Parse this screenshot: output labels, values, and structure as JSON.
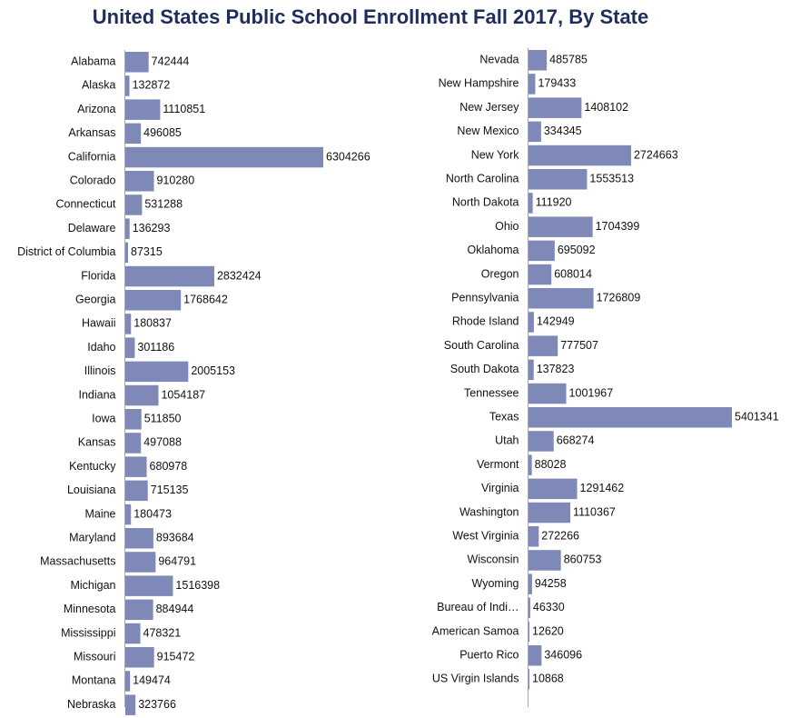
{
  "chart_data": {
    "type": "bar",
    "title": "United States Public School Enrollment Fall 2017, By State",
    "orientation": "horizontal",
    "colors": {
      "bar": "#7f89b8",
      "title": "#1f2d5c",
      "axis": "#aaaaaa"
    },
    "panels": [
      {
        "categories": [
          "Alabama",
          "Alaska",
          "Arizona",
          "Arkansas",
          "California",
          "Colorado",
          "Connecticut",
          "Delaware",
          "District of Columbia",
          "Florida",
          "Georgia",
          "Hawaii",
          "Idaho",
          "Illinois",
          "Indiana",
          "Iowa",
          "Kansas",
          "Kentucky",
          "Louisiana",
          "Maine",
          "Maryland",
          "Massachusetts",
          "Michigan",
          "Minnesota",
          "Mississippi",
          "Missouri",
          "Montana",
          "Nebraska"
        ],
        "values": [
          742444,
          132872,
          1110851,
          496085,
          6304266,
          910280,
          531288,
          136293,
          87315,
          2832424,
          1768642,
          180837,
          301186,
          2005153,
          1054187,
          511850,
          497088,
          680978,
          715135,
          180473,
          893684,
          964791,
          1516398,
          884944,
          478321,
          915472,
          149474,
          323766
        ]
      },
      {
        "categories": [
          "Nevada",
          "New Hampshire",
          "New Jersey",
          "New Mexico",
          "New York",
          "North Carolina",
          "North Dakota",
          "Ohio",
          "Oklahoma",
          "Oregon",
          "Pennsylvania",
          "Rhode Island",
          "South Carolina",
          "South Dakota",
          "Tennessee",
          "Texas",
          "Utah",
          "Vermont",
          "Virginia",
          "Washington",
          "West Virginia",
          "Wisconsin",
          "Wyoming",
          "Bureau of Indi…",
          "American Samoa",
          "Puerto Rico",
          "US Virgin Islands"
        ],
        "values": [
          485785,
          179433,
          1408102,
          334345,
          2724663,
          1553513,
          111920,
          1704399,
          695092,
          608014,
          1726809,
          142949,
          777507,
          137823,
          1001967,
          5401341,
          668274,
          88028,
          1291462,
          1110367,
          272266,
          860753,
          94258,
          46330,
          12620,
          346096,
          10868
        ]
      }
    ]
  }
}
